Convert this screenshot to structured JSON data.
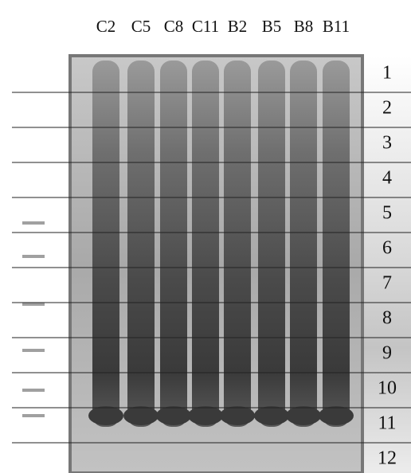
{
  "lanes": [
    "C2",
    "C5",
    "C8",
    "C11",
    "B2",
    "B5",
    "B8",
    "B11"
  ],
  "slices": [
    "1",
    "2",
    "3",
    "4",
    "5",
    "6",
    "7",
    "8",
    "9",
    "10",
    "11",
    "12"
  ]
}
